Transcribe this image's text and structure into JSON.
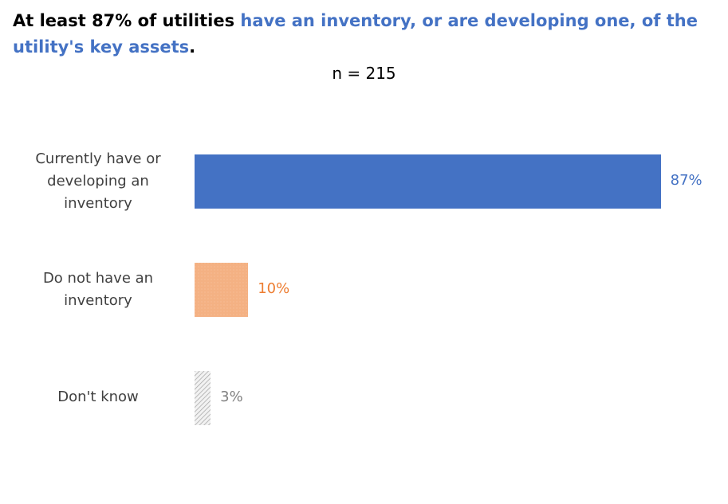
{
  "title": {
    "part1": "At least 87% of utilities ",
    "part2": "have an inventory, or are developing one, of the utility's key assets",
    "part3": "."
  },
  "subtitle": "n = 215",
  "chart_data": {
    "type": "bar",
    "orientation": "horizontal",
    "categories": [
      "Currently have or developing an inventory",
      "Do not have an inventory",
      "Don't know"
    ],
    "values": [
      87,
      10,
      3
    ],
    "data_labels": [
      "87%",
      "10%",
      "3%"
    ],
    "colors": [
      "#4472C4",
      "#F4B183",
      "#D9D9D9"
    ],
    "label_colors": [
      "#4472C4",
      "#ED7D31",
      "#808080"
    ],
    "xlim": [
      0,
      100
    ],
    "grid": false,
    "legend": "none"
  }
}
